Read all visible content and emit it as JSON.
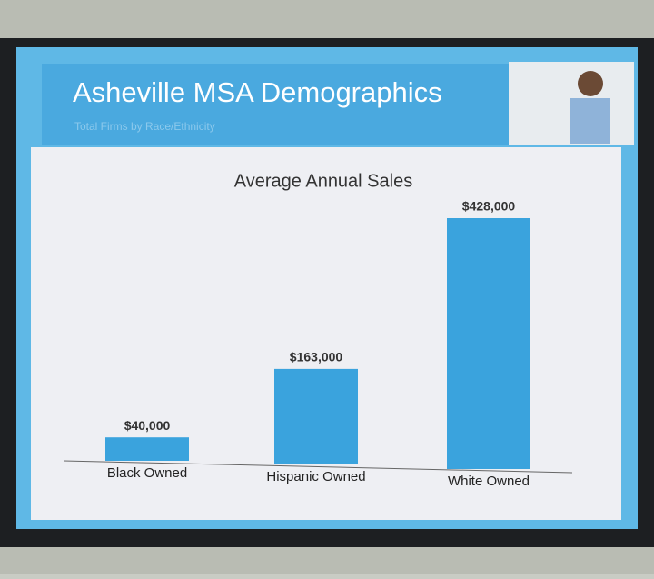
{
  "header": {
    "title": "Asheville MSA Demographics",
    "subtitle": "Total Firms by Race/Ethnicity"
  },
  "chart_data": {
    "type": "bar",
    "title": "Average Annual Sales",
    "categories": [
      "Black Owned",
      "Hispanic Owned",
      "White Owned"
    ],
    "values": [
      40000,
      163000,
      428000
    ],
    "value_labels": [
      "$40,000",
      "$163,000",
      "$428,000"
    ],
    "color": "#3aa3dd"
  }
}
